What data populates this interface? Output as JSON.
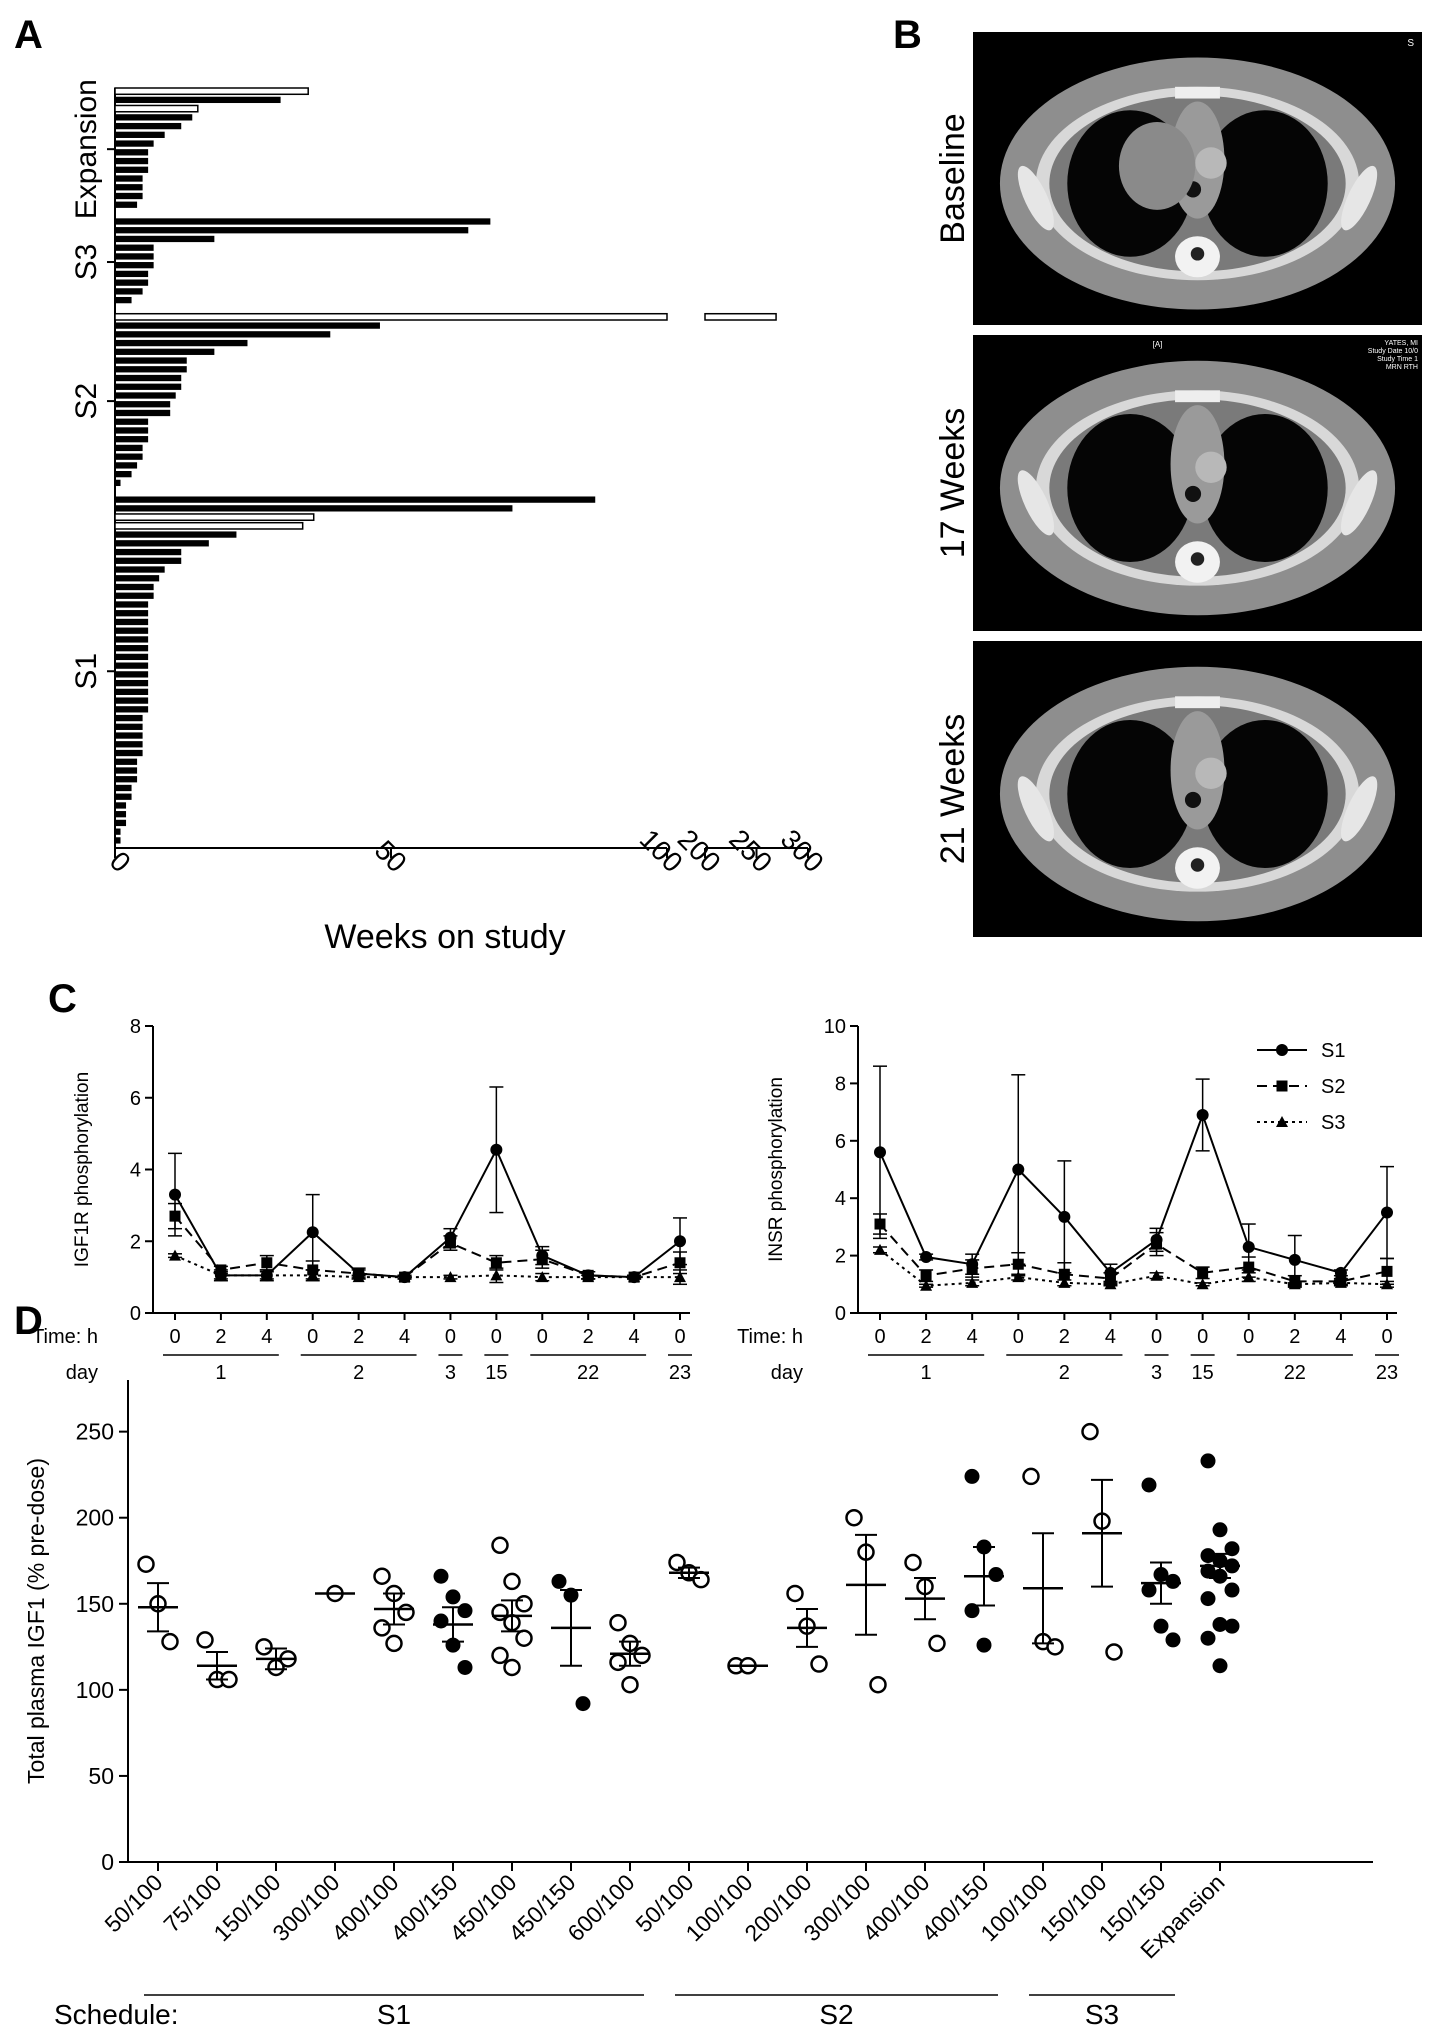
{
  "panels": {
    "a": "A",
    "b": "B",
    "c": "C",
    "d": "D"
  },
  "chart_data": [
    {
      "type": "bar",
      "panel": "A",
      "xlabel": "Weeks on study",
      "orientation": "horizontal",
      "x_ticks_segment1": [
        0,
        50,
        100
      ],
      "x_ticks_segment2": [
        200,
        250,
        300
      ],
      "xlim_segment1": [
        0,
        100
      ],
      "xlim_segment2": [
        200,
        300
      ],
      "groups": [
        {
          "name": "Expansion",
          "values": [
            35,
            30,
            15,
            14,
            12,
            9,
            7,
            6,
            6,
            6,
            5,
            5,
            5,
            4
          ],
          "open": [
            true,
            false,
            true,
            false,
            false,
            false,
            false,
            false,
            false,
            false,
            false,
            false,
            false,
            false
          ]
        },
        {
          "name": "S3",
          "values": [
            68,
            64,
            18,
            7,
            7,
            7,
            6,
            6,
            5,
            3
          ],
          "open": [
            false,
            false,
            false,
            false,
            false,
            false,
            false,
            false,
            false,
            false
          ]
        },
        {
          "name": "S2",
          "values": [
            269,
            48,
            39,
            24,
            18,
            13,
            13,
            12,
            12,
            11,
            10,
            10,
            6,
            6,
            6,
            5,
            5,
            4,
            3,
            1
          ],
          "open": [
            true,
            false,
            false,
            false,
            false,
            false,
            false,
            false,
            false,
            false,
            false,
            false,
            false,
            false,
            false,
            false,
            false,
            false,
            false,
            false
          ]
        },
        {
          "name": "S1",
          "values": [
            87,
            72,
            36,
            34,
            22,
            17,
            12,
            12,
            9,
            8,
            7,
            7,
            6,
            6,
            6,
            6,
            6,
            6,
            6,
            6,
            6,
            6,
            6,
            6,
            6,
            5,
            5,
            5,
            5,
            5,
            4,
            4,
            4,
            3,
            3,
            2,
            2,
            2,
            1,
            1
          ],
          "open": [
            false,
            false,
            true,
            true,
            false,
            false,
            false,
            false,
            false,
            false,
            false,
            false,
            false,
            false,
            false,
            false,
            false,
            false,
            false,
            false,
            false,
            false,
            false,
            false,
            false,
            false,
            false,
            false,
            false,
            false,
            false,
            false,
            false,
            false,
            false,
            false,
            false,
            false,
            false,
            false
          ]
        }
      ]
    },
    {
      "type": "line",
      "panel": "C-left",
      "ylabel": "IGF1R phosphorylation",
      "ylim": [
        0,
        8
      ],
      "y_ticks": [
        0,
        2,
        4,
        6,
        8
      ],
      "time_label": "Time: h",
      "day_label": "day",
      "time_points": [
        "0",
        "2",
        "4",
        "0",
        "2",
        "4",
        "0",
        "0",
        "0",
        "2",
        "4",
        "0"
      ],
      "day_groups": [
        {
          "label": "1",
          "from": 0,
          "to": 2
        },
        {
          "label": "2",
          "from": 3,
          "to": 5
        },
        {
          "label": "3",
          "from": 6,
          "to": 6
        },
        {
          "label": "15",
          "from": 7,
          "to": 7
        },
        {
          "label": "22",
          "from": 8,
          "to": 10
        },
        {
          "label": "23",
          "from": 11,
          "to": 11
        }
      ],
      "series": [
        {
          "name": "S1",
          "values": [
            3.3,
            1.05,
            1.05,
            2.25,
            1.1,
            1.0,
            2.1,
            4.55,
            1.6,
            1.05,
            1.0,
            2.0
          ],
          "err": [
            1.15,
            0.15,
            0.15,
            1.05,
            0.1,
            0.05,
            0.25,
            1.75,
            0.25,
            0.1,
            0.05,
            0.65
          ]
        },
        {
          "name": "S2",
          "values": [
            2.7,
            1.2,
            1.4,
            1.2,
            1.1,
            1.0,
            1.95,
            1.4,
            1.5,
            1.05,
            1.0,
            1.4
          ],
          "err": [
            0.35,
            0.1,
            0.2,
            0.25,
            0.15,
            0.05,
            0.2,
            0.2,
            0.25,
            0.1,
            0.05,
            0.3
          ]
        },
        {
          "name": "S3",
          "values": [
            1.6,
            1.05,
            1.05,
            1.05,
            1.0,
            1.0,
            1.0,
            1.05,
            1.0,
            1.0,
            1.0,
            1.0
          ],
          "err": [
            0.05,
            0.1,
            0.1,
            0.15,
            0.05,
            0.05,
            0.05,
            0.2,
            0.1,
            0.05,
            0.05,
            0.2
          ]
        }
      ]
    },
    {
      "type": "line",
      "panel": "C-right",
      "ylabel": "INSR phosphorylation",
      "ylim": [
        0,
        10
      ],
      "y_ticks": [
        0,
        2,
        4,
        6,
        8,
        10
      ],
      "time_label": "Time: h",
      "day_label": "day",
      "time_points": [
        "0",
        "2",
        "4",
        "0",
        "2",
        "4",
        "0",
        "0",
        "0",
        "2",
        "4",
        "0"
      ],
      "day_groups": [
        {
          "label": "1",
          "from": 0,
          "to": 2
        },
        {
          "label": "2",
          "from": 3,
          "to": 5
        },
        {
          "label": "3",
          "from": 6,
          "to": 6
        },
        {
          "label": "15",
          "from": 7,
          "to": 7
        },
        {
          "label": "22",
          "from": 8,
          "to": 10
        },
        {
          "label": "23",
          "from": 11,
          "to": 11
        }
      ],
      "legend": "top-right",
      "series": [
        {
          "name": "S1",
          "values": [
            5.6,
            1.95,
            1.7,
            5.0,
            3.35,
            1.4,
            2.55,
            6.9,
            2.3,
            1.85,
            1.4,
            3.5
          ],
          "err": [
            3.0,
            0.1,
            0.35,
            3.3,
            1.95,
            0.3,
            0.4,
            1.25,
            0.8,
            0.85,
            0.1,
            1.6
          ]
        },
        {
          "name": "S2",
          "values": [
            3.1,
            1.3,
            1.55,
            1.7,
            1.35,
            1.2,
            2.4,
            1.4,
            1.6,
            1.1,
            1.1,
            1.45
          ],
          "err": [
            0.35,
            0.2,
            0.3,
            0.4,
            0.4,
            0.2,
            0.4,
            0.2,
            0.35,
            0.2,
            0.1,
            0.45
          ]
        },
        {
          "name": "S3",
          "values": [
            2.2,
            0.95,
            1.05,
            1.25,
            1.05,
            1.0,
            1.3,
            1.0,
            1.25,
            1.0,
            1.05,
            1.0
          ],
          "err": [
            0.1,
            0.05,
            0.1,
            0.1,
            0.1,
            0.05,
            0.1,
            0.05,
            0.15,
            0.05,
            0.1,
            0.1
          ]
        }
      ]
    },
    {
      "type": "scatter",
      "panel": "D",
      "ylabel": "Total plasma IGF1 (% pre-dose)",
      "ylim": [
        0,
        280
      ],
      "y_ticks": [
        0,
        50,
        100,
        150,
        200,
        250
      ],
      "schedule_label": "Schedule:",
      "schedule_groups": [
        {
          "label": "S1",
          "from": 0,
          "to": 8
        },
        {
          "label": "S2",
          "from": 9,
          "to": 14
        },
        {
          "label": "S3",
          "from": 15,
          "to": 17
        }
      ],
      "categories": [
        {
          "label": "50/100",
          "mean": 148,
          "sem": 14,
          "open": [
            173,
            150,
            128
          ],
          "filled": []
        },
        {
          "label": "75/100",
          "mean": 114,
          "sem": 8,
          "open": [
            129,
            106,
            106
          ],
          "filled": []
        },
        {
          "label": "150/100",
          "mean": 118,
          "sem": 6,
          "open": [
            125,
            113,
            118
          ],
          "filled": []
        },
        {
          "label": "300/100",
          "mean": 156,
          "sem": 0,
          "open": [
            156
          ],
          "filled": []
        },
        {
          "label": "400/100",
          "mean": 147,
          "sem": 9,
          "open": [
            166,
            156,
            145,
            136,
            127
          ],
          "filled": []
        },
        {
          "label": "400/150",
          "mean": 138,
          "sem": 10,
          "open": [],
          "filled": [
            166,
            154,
            146,
            140,
            126,
            113
          ]
        },
        {
          "label": "450/100",
          "mean": 143,
          "sem": 9,
          "open": [
            184,
            163,
            150,
            145,
            139,
            130,
            120,
            113
          ],
          "filled": []
        },
        {
          "label": "450/150",
          "mean": 136,
          "sem": 22,
          "open": [],
          "filled": [
            163,
            155,
            92
          ]
        },
        {
          "label": "600/100",
          "mean": 121,
          "sem": 7,
          "open": [
            139,
            127,
            120,
            116,
            103
          ],
          "filled": []
        },
        {
          "label": "50/100",
          "mean": 168,
          "sem": 3,
          "open": [
            174,
            168,
            164
          ],
          "filled": []
        },
        {
          "label": "100/100",
          "mean": 114,
          "sem": 0,
          "open": [
            114,
            114
          ],
          "filled": []
        },
        {
          "label": "200/100",
          "mean": 136,
          "sem": 11,
          "open": [
            156,
            137,
            115
          ],
          "filled": []
        },
        {
          "label": "300/100",
          "mean": 161,
          "sem": 29,
          "open": [
            200,
            180,
            103
          ],
          "filled": []
        },
        {
          "label": "400/100",
          "mean": 153,
          "sem": 12,
          "open": [
            174,
            160,
            127
          ],
          "filled": []
        },
        {
          "label": "400/150",
          "mean": 166,
          "sem": 17,
          "open": [],
          "filled": [
            224,
            183,
            167,
            146,
            126
          ]
        },
        {
          "label": "100/100",
          "mean": 159,
          "sem": 32,
          "open": [
            224,
            128,
            125
          ],
          "filled": []
        },
        {
          "label": "150/100",
          "mean": 191,
          "sem": 31,
          "open": [
            250,
            198,
            122
          ],
          "filled": []
        },
        {
          "label": "150/150",
          "mean": 162,
          "sem": 12,
          "open": [],
          "filled": [
            219,
            167,
            163,
            158,
            137,
            129
          ]
        },
        {
          "label": "Expansion",
          "mean": 172,
          "sem": 7,
          "open": [],
          "filled": [
            233,
            193,
            182,
            178,
            175,
            172,
            169,
            166,
            158,
            153,
            138,
            137,
            130,
            114
          ]
        }
      ]
    }
  ],
  "ct_panel": {
    "labels": [
      "Baseline",
      "17 Weeks",
      "21 Weeks"
    ],
    "overlay_top_right": "S",
    "overlay_center": "[A]",
    "overlay_lines": [
      "YATES, MI",
      "Study Date 10/0",
      "Study Time 1",
      "MRN RTH"
    ]
  }
}
